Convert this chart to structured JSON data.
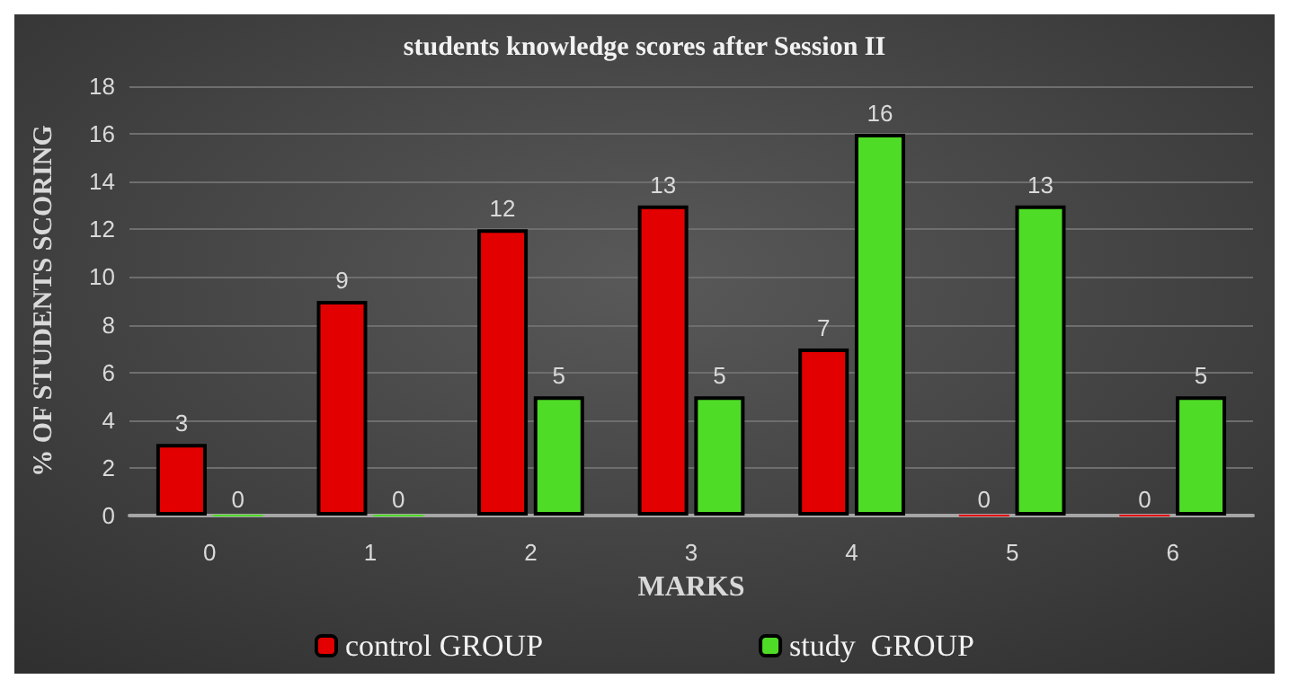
{
  "chart_data": {
    "type": "bar",
    "title": "students knowledge scores after Session II",
    "xlabel": "MARKS",
    "ylabel": "% OF STUDENTS SCORING",
    "categories": [
      "0",
      "1",
      "2",
      "3",
      "4",
      "5",
      "6"
    ],
    "series": [
      {
        "name": "control GROUP",
        "color": "#e30000",
        "values": [
          3,
          9,
          12,
          13,
          7,
          0,
          0
        ]
      },
      {
        "name": "study  GROUP",
        "color": "#4fdc26",
        "values": [
          0,
          0,
          5,
          5,
          16,
          13,
          5
        ]
      }
    ],
    "ylim": [
      0,
      18
    ],
    "yticks": [
      0,
      2,
      4,
      6,
      8,
      10,
      12,
      14,
      16,
      18
    ],
    "grid": "y",
    "legend": "bottom",
    "data_labels": true
  }
}
